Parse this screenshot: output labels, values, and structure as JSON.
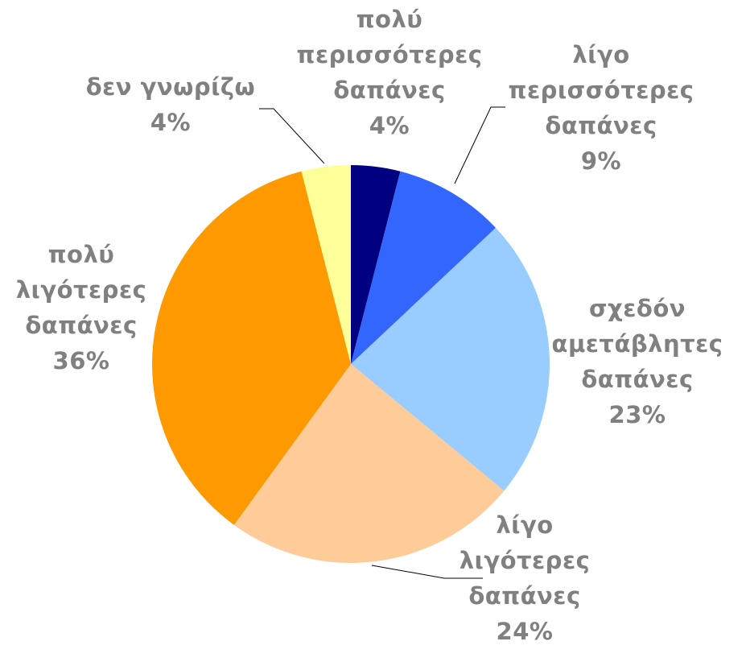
{
  "chart_data": {
    "type": "pie",
    "title": "",
    "start_angle_deg": 0,
    "direction": "clockwise",
    "slices": [
      {
        "label": "πολύ περισσότερες δαπάνες",
        "label_lines": [
          "πολύ",
          "περισσότερες",
          "δαπάνες"
        ],
        "value": 4,
        "value_text": "4%",
        "color": "#000080"
      },
      {
        "label": "λίγο περισσότερες δαπάνες",
        "label_lines": [
          "λίγο",
          "περισσότερες",
          "δαπάνες"
        ],
        "value": 9,
        "value_text": "9%",
        "color": "#3366FF"
      },
      {
        "label": "σχεδόν αμετάβλητες δαπάνες",
        "label_lines": [
          "σχεδόν",
          "αμετάβλητες",
          "δαπάνες"
        ],
        "value": 23,
        "value_text": "23%",
        "color": "#99CCFF"
      },
      {
        "label": "λίγο λιγότερες δαπάνες",
        "label_lines": [
          "λίγο",
          "λιγότερες",
          "δαπάνες"
        ],
        "value": 24,
        "value_text": "24%",
        "color": "#FFCC99"
      },
      {
        "label": "πολύ λιγότερες δαπάνες",
        "label_lines": [
          "πολύ",
          "λιγότερες",
          "δαπάνες"
        ],
        "value": 36,
        "value_text": "36%",
        "color": "#FF9900"
      },
      {
        "label": "δεν γνωρίζω",
        "label_lines": [
          "δεν γνωρίζω"
        ],
        "value": 4,
        "value_text": "4%",
        "color": "#FFFF99"
      }
    ],
    "label_color": "#808080",
    "leader_lines": true
  }
}
